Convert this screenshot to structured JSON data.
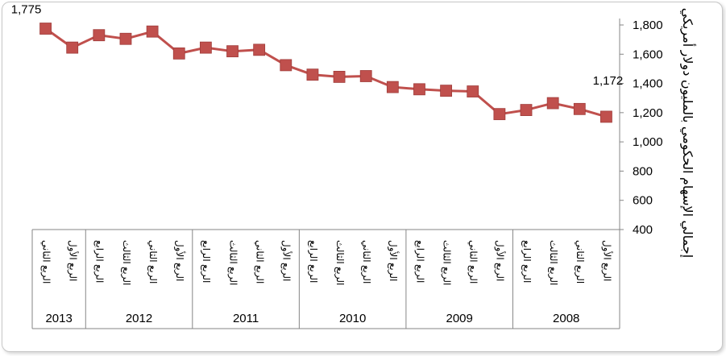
{
  "chart_data": {
    "type": "line",
    "categories": [
      "الربع الأول",
      "الربع الثاني",
      "الربع الثالث",
      "الربع الرابع",
      "الربع الأول",
      "الربع الثاني",
      "الربع الثالث",
      "الربع الرابع",
      "الربع الأول",
      "الربع الثاني",
      "الربع الثالث",
      "الربع الرابع",
      "الربع الأول",
      "الربع الثاني",
      "الربع الثالث",
      "الربع الرابع",
      "الربع الأول",
      "الربع الثاني",
      "الربع الثالث",
      "الربع الرابع",
      "الربع الأول",
      "الربع الثاني"
    ],
    "years": [
      {
        "label": "2008",
        "count": 4
      },
      {
        "label": "2009",
        "count": 4
      },
      {
        "label": "2010",
        "count": 4
      },
      {
        "label": "2011",
        "count": 4
      },
      {
        "label": "2012",
        "count": 4
      },
      {
        "label": "2013",
        "count": 2
      }
    ],
    "series": [
      {
        "values": [
          1172,
          1225,
          1265,
          1218,
          1190,
          1345,
          1350,
          1360,
          1375,
          1450,
          1445,
          1460,
          1525,
          1630,
          1620,
          1645,
          1605,
          1755,
          1705,
          1730,
          1645,
          1775
        ],
        "color": "#c0504d"
      }
    ],
    "data_labels": [
      {
        "index": 0,
        "text": "1,172"
      },
      {
        "index": 21,
        "text": "1,775"
      }
    ],
    "yticks": [
      "400",
      "600",
      "800",
      "1,000",
      "1,200",
      "1,400",
      "1,600",
      "1,800"
    ],
    "ylim": [
      400,
      1800
    ],
    "ylabel": "إجمالي الإسهام الحكومي بالمليون دولار أمريكي",
    "axis_position": "right",
    "x_direction": "right-to-left",
    "grid": false,
    "legend": "none"
  }
}
